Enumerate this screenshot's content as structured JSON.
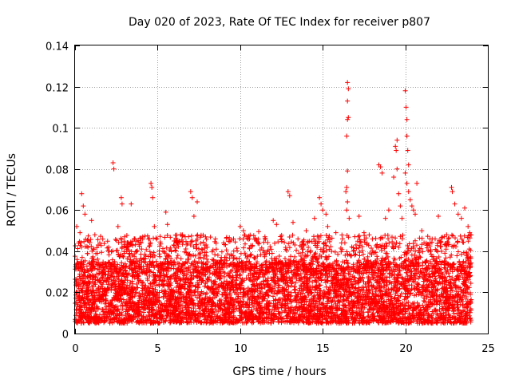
{
  "chart_data": {
    "type": "scatter",
    "title": "Day 020 of 2023, Rate Of TEC Index for receiver p807",
    "xlabel": "GPS time / hours",
    "ylabel": "ROTI / TECUs",
    "xlim": [
      0,
      25
    ],
    "ylim": [
      0,
      0.14
    ],
    "xticks": [
      0,
      5,
      10,
      15,
      20,
      25
    ],
    "yticks": [
      0,
      0.02,
      0.04,
      0.06,
      0.08,
      0.1,
      0.12,
      0.14
    ],
    "xtick_labels": [
      "0",
      "5",
      "10",
      "15",
      "20",
      "25"
    ],
    "ytick_labels": [
      "0",
      "0.02",
      "0.04",
      "0.06",
      "0.08",
      "0.1",
      "0.12",
      "0.14"
    ],
    "grid": true,
    "marker": "+",
    "color": "#ff0000",
    "series": [
      {
        "name": "ROTI",
        "background": {
          "x_range": [
            0,
            24
          ],
          "typical_range": [
            0.005,
            0.035
          ],
          "note": "dense continuous cloud of points across the whole day"
        },
        "points": [
          [
            0.1,
            0.052
          ],
          [
            0.3,
            0.049
          ],
          [
            0.4,
            0.068
          ],
          [
            0.5,
            0.062
          ],
          [
            0.6,
            0.058
          ],
          [
            0.8,
            0.045
          ],
          [
            1.0,
            0.055
          ],
          [
            1.2,
            0.048
          ],
          [
            1.5,
            0.044
          ],
          [
            2.3,
            0.083
          ],
          [
            2.35,
            0.08
          ],
          [
            2.6,
            0.052
          ],
          [
            2.8,
            0.066
          ],
          [
            2.85,
            0.063
          ],
          [
            3.0,
            0.047
          ],
          [
            3.4,
            0.063
          ],
          [
            4.0,
            0.044
          ],
          [
            4.6,
            0.073
          ],
          [
            4.65,
            0.071
          ],
          [
            4.7,
            0.066
          ],
          [
            4.8,
            0.052
          ],
          [
            5.5,
            0.059
          ],
          [
            5.6,
            0.053
          ],
          [
            6.0,
            0.045
          ],
          [
            6.5,
            0.048
          ],
          [
            7.0,
            0.069
          ],
          [
            7.1,
            0.066
          ],
          [
            7.2,
            0.057
          ],
          [
            7.4,
            0.064
          ],
          [
            7.9,
            0.047
          ],
          [
            8.5,
            0.046
          ],
          [
            9.0,
            0.044
          ],
          [
            9.6,
            0.046
          ],
          [
            10.0,
            0.052
          ],
          [
            10.2,
            0.05
          ],
          [
            10.4,
            0.047
          ],
          [
            11.0,
            0.045
          ],
          [
            11.5,
            0.047
          ],
          [
            12.0,
            0.055
          ],
          [
            12.2,
            0.053
          ],
          [
            12.9,
            0.069
          ],
          [
            13.0,
            0.067
          ],
          [
            13.2,
            0.054
          ],
          [
            13.5,
            0.046
          ],
          [
            14.0,
            0.05
          ],
          [
            14.5,
            0.056
          ],
          [
            14.8,
            0.066
          ],
          [
            14.9,
            0.063
          ],
          [
            15.0,
            0.06
          ],
          [
            15.2,
            0.058
          ],
          [
            15.3,
            0.052
          ],
          [
            15.8,
            0.049
          ],
          [
            16.2,
            0.046
          ],
          [
            16.5,
            0.122
          ],
          [
            16.55,
            0.119
          ],
          [
            16.5,
            0.113
          ],
          [
            16.55,
            0.105
          ],
          [
            16.5,
            0.104
          ],
          [
            16.45,
            0.096
          ],
          [
            16.5,
            0.079
          ],
          [
            16.45,
            0.071
          ],
          [
            16.4,
            0.069
          ],
          [
            16.5,
            0.064
          ],
          [
            16.45,
            0.06
          ],
          [
            16.6,
            0.056
          ],
          [
            17.2,
            0.057
          ],
          [
            17.5,
            0.049
          ],
          [
            18.4,
            0.082
          ],
          [
            18.5,
            0.081
          ],
          [
            18.6,
            0.078
          ],
          [
            18.8,
            0.056
          ],
          [
            19.0,
            0.06
          ],
          [
            19.3,
            0.076
          ],
          [
            19.4,
            0.091
          ],
          [
            19.5,
            0.094
          ],
          [
            19.45,
            0.089
          ],
          [
            19.5,
            0.08
          ],
          [
            19.6,
            0.068
          ],
          [
            19.7,
            0.062
          ],
          [
            19.8,
            0.056
          ],
          [
            20.0,
            0.118
          ],
          [
            20.05,
            0.11
          ],
          [
            20.1,
            0.104
          ],
          [
            20.1,
            0.096
          ],
          [
            20.15,
            0.089
          ],
          [
            20.2,
            0.082
          ],
          [
            20.0,
            0.078
          ],
          [
            20.1,
            0.073
          ],
          [
            20.2,
            0.069
          ],
          [
            20.3,
            0.065
          ],
          [
            20.4,
            0.062
          ],
          [
            20.5,
            0.06
          ],
          [
            20.6,
            0.058
          ],
          [
            20.7,
            0.073
          ],
          [
            21.0,
            0.05
          ],
          [
            21.5,
            0.046
          ],
          [
            22.0,
            0.057
          ],
          [
            22.5,
            0.048
          ],
          [
            22.8,
            0.071
          ],
          [
            22.85,
            0.069
          ],
          [
            23.0,
            0.063
          ],
          [
            23.2,
            0.058
          ],
          [
            23.4,
            0.056
          ],
          [
            23.6,
            0.061
          ],
          [
            23.8,
            0.052
          ],
          [
            23.9,
            0.049
          ]
        ]
      }
    ]
  }
}
